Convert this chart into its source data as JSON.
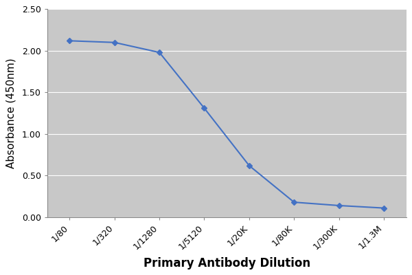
{
  "x_labels": [
    "1/80",
    "1/320",
    "1/1280",
    "1/5120",
    "1/20K",
    "1/80K",
    "1/300K",
    "1/1.3M"
  ],
  "y_values": [
    2.12,
    2.1,
    1.98,
    1.31,
    0.62,
    0.18,
    0.14,
    0.11
  ],
  "xlabel": "Primary Antibody Dilution",
  "ylabel": "Absorbance (450nm)",
  "ylim": [
    0.0,
    2.5
  ],
  "yticks": [
    0.0,
    0.5,
    1.0,
    1.5,
    2.0,
    2.5
  ],
  "line_color": "#4472C4",
  "marker": "D",
  "marker_size": 4,
  "line_width": 1.5,
  "plot_bg_color": "#C8C8C8",
  "fig_bg_color": "#FFFFFF",
  "grid_color": "#FFFFFF",
  "xlabel_fontsize": 12,
  "ylabel_fontsize": 11,
  "tick_fontsize": 9,
  "xlabel_fontweight": "bold",
  "ylabel_fontweight": "normal"
}
